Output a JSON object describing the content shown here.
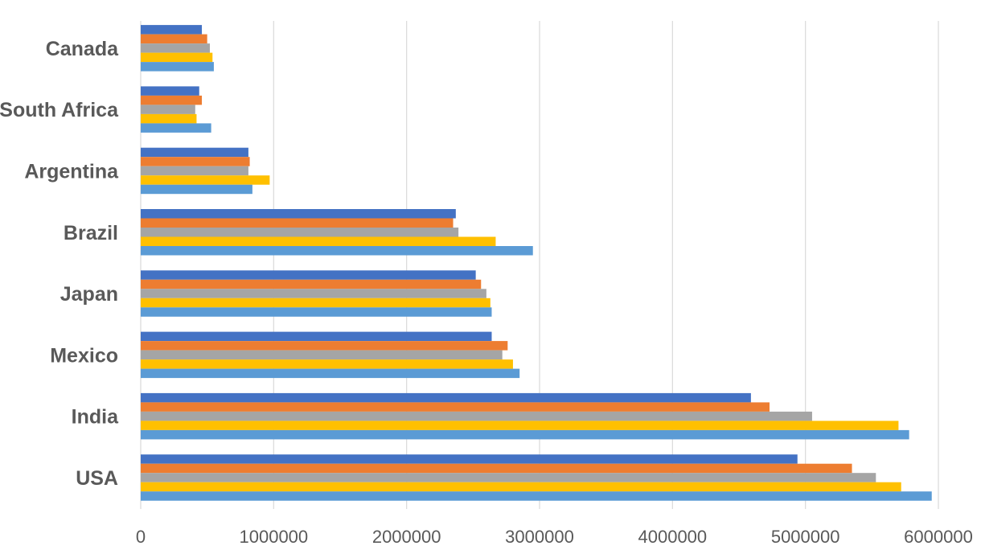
{
  "chart_data": {
    "type": "bar",
    "orientation": "horizontal",
    "categories": [
      "USA",
      "India",
      "Mexico",
      "Japan",
      "Brazil",
      "Argentina",
      "South Africa",
      "Canada"
    ],
    "series": [
      {
        "color": "#4472C4",
        "values": [
          4940000,
          4590000,
          2640000,
          2520000,
          2370000,
          810000,
          440000,
          460000
        ]
      },
      {
        "color": "#ED7D31",
        "values": [
          5350000,
          4730000,
          2760000,
          2560000,
          2350000,
          820000,
          460000,
          500000
        ]
      },
      {
        "color": "#A5A5A5",
        "values": [
          5530000,
          5050000,
          2720000,
          2600000,
          2390000,
          810000,
          410000,
          520000
        ]
      },
      {
        "color": "#FFC000",
        "values": [
          5720000,
          5700000,
          2800000,
          2630000,
          2670000,
          970000,
          420000,
          540000
        ]
      },
      {
        "color": "#5B9BD5",
        "values": [
          5950000,
          5780000,
          2850000,
          2640000,
          2950000,
          840000,
          530000,
          550000
        ]
      }
    ],
    "x_ticks": [
      "0",
      "1000000",
      "2000000",
      "3000000",
      "4000000",
      "5000000",
      "6000000"
    ],
    "xlim": [
      0,
      6000000
    ],
    "grid": "vertical",
    "legend": "none",
    "title": "",
    "xlabel": "",
    "ylabel": ""
  }
}
